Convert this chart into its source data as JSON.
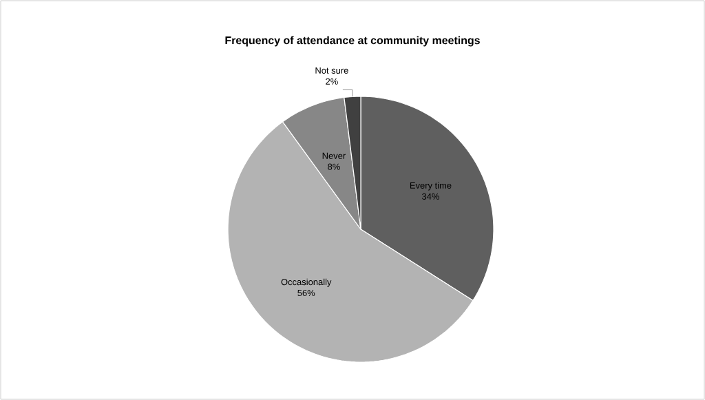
{
  "chart_data": {
    "type": "pie",
    "title": "Frequency of attendance at community meetings",
    "categories": [
      "Every time",
      "Occasionally",
      "Never",
      "Not sure"
    ],
    "values": [
      34,
      56,
      8,
      2
    ],
    "colors": [
      "#5f5f5f",
      "#b3b3b3",
      "#878787",
      "#404040"
    ],
    "value_labels": [
      "34%",
      "56%",
      "8%",
      "2%"
    ]
  }
}
